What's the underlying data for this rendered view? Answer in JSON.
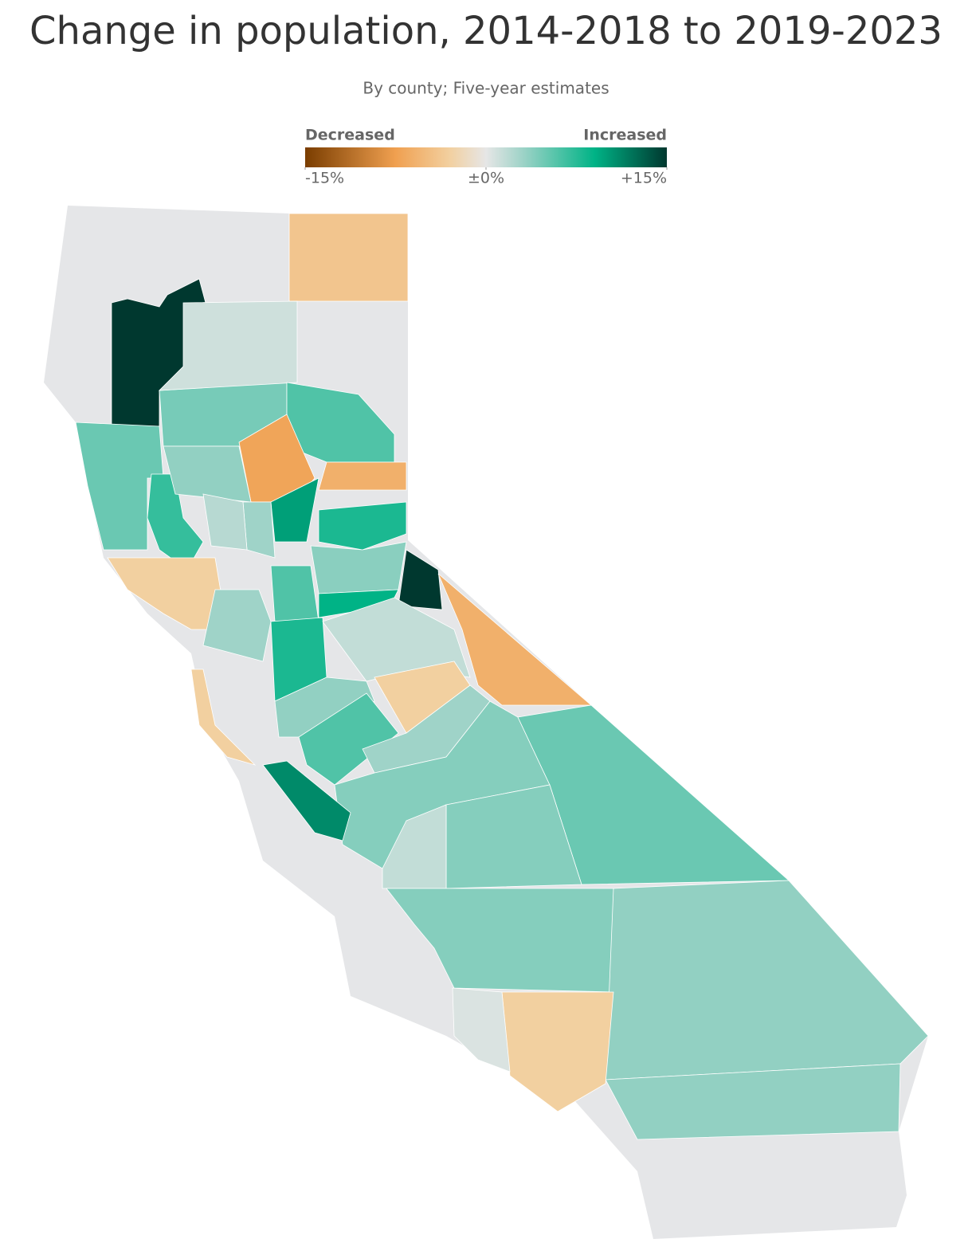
{
  "chart_data": {
    "type": "choropleth",
    "title": "Change in population, 2014-2018 to 2019-2023",
    "subtitle": "By county; Five-year estimates",
    "legend": {
      "low_label": "Decreased",
      "high_label": "Increased",
      "range": [
        -15,
        15
      ],
      "ticks": [
        {
          "value": -15,
          "label": "-15%"
        },
        {
          "value": 0,
          "label": "±0%"
        },
        {
          "value": 15,
          "label": "+15%"
        }
      ]
    },
    "values": [
      -4,
      15,
      5,
      7,
      4.5,
      1,
      6,
      -7,
      -6,
      3.5,
      10,
      8,
      3,
      2,
      -3,
      3.8,
      15,
      -6,
      9,
      6,
      8,
      3,
      1.5,
      -3,
      3.5,
      6,
      3,
      4,
      11,
      5,
      4,
      1.5,
      4,
      3.5,
      3.5,
      -3,
      0.5,
      -3
    ]
  }
}
